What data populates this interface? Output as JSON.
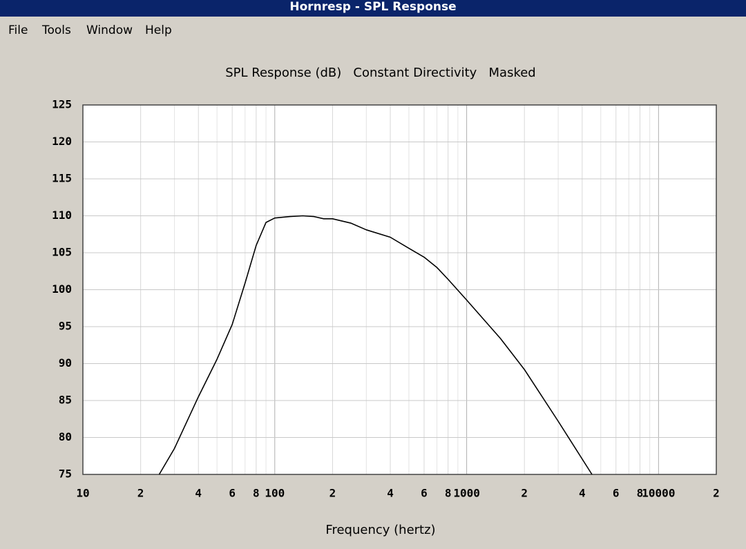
{
  "window": {
    "title": "Hornresp - SPL Response",
    "menu": [
      "File",
      "Tools",
      "Window",
      "Help"
    ]
  },
  "chart_data": {
    "type": "line",
    "title": "SPL Response (dB)   Constant Directivity   Masked",
    "xlabel": "Frequency (hertz)",
    "xscale": "log",
    "color": "#000000",
    "grid": true,
    "x": [
      25,
      30,
      40,
      50,
      60,
      70,
      80,
      90,
      100,
      120,
      140,
      160,
      180,
      200,
      250,
      300,
      400,
      500,
      600,
      700,
      800,
      1000,
      1500,
      2000,
      3000,
      4500
    ],
    "values": [
      75,
      78.5,
      85.5,
      90.6,
      95.3,
      100.9,
      106,
      109.1,
      109.7,
      109.9,
      110,
      109.9,
      109.6,
      109.6,
      109,
      108.1,
      107.1,
      105.6,
      104.4,
      103,
      101.4,
      98.6,
      93.4,
      89.2,
      82.2,
      75
    ],
    "xlim": [
      10,
      20000
    ],
    "ylim": [
      75,
      125
    ],
    "xticks": [
      10,
      {
        "value": 20,
        "label": "2"
      },
      {
        "value": 40,
        "label": "4"
      },
      {
        "value": 60,
        "label": "6"
      },
      {
        "value": 80,
        "label": "8"
      },
      100,
      {
        "value": 200,
        "label": "2"
      },
      {
        "value": 400,
        "label": "4"
      },
      {
        "value": 600,
        "label": "6"
      },
      {
        "value": 800,
        "label": "8"
      },
      1000,
      {
        "value": 2000,
        "label": "2"
      },
      {
        "value": 4000,
        "label": "4"
      },
      {
        "value": 6000,
        "label": "6"
      },
      {
        "value": 8000,
        "label": "8"
      },
      10000,
      {
        "value": 20000,
        "label": "2"
      }
    ],
    "xminorticks": [
      30,
      50,
      70,
      90,
      300,
      500,
      700,
      900,
      3000,
      5000,
      7000,
      9000
    ],
    "yticks": [
      75,
      80,
      85,
      90,
      95,
      100,
      105,
      110,
      115,
      120,
      125
    ]
  }
}
